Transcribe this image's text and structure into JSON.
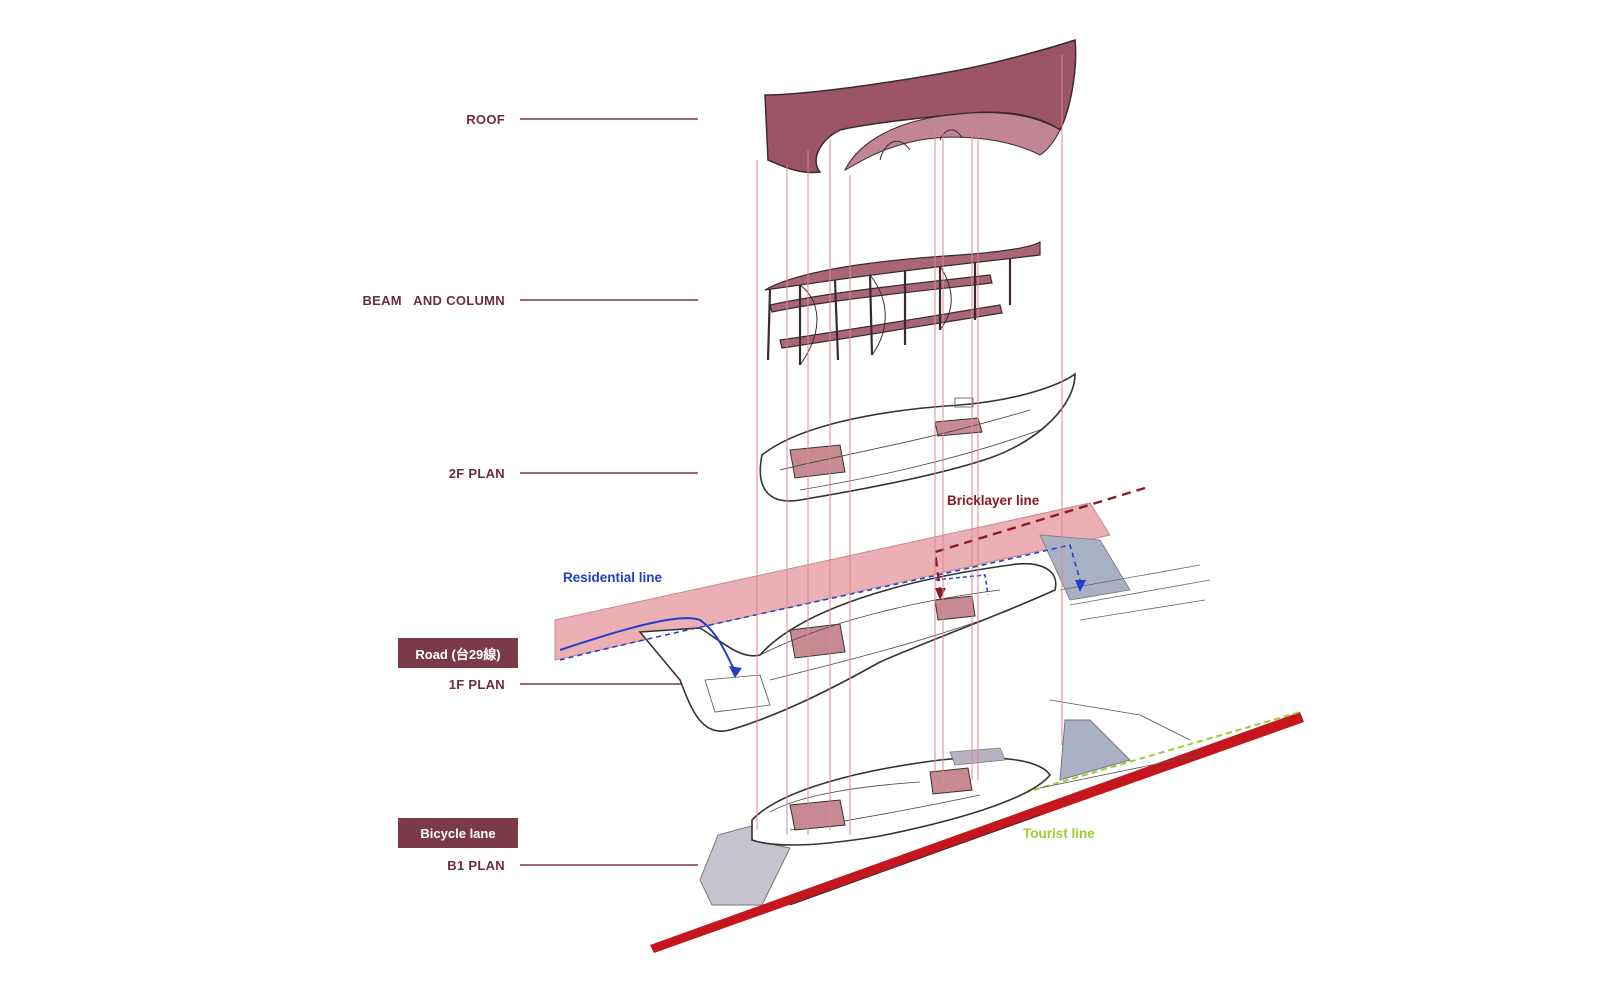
{
  "layers": [
    {
      "id": "roof",
      "label": "ROOF"
    },
    {
      "id": "beam",
      "label": "BEAM   AND COLUMN"
    },
    {
      "id": "f2",
      "label": "2F PLAN"
    },
    {
      "id": "f1",
      "label": "1F PLAN"
    },
    {
      "id": "b1",
      "label": "B1 PLAN"
    }
  ],
  "tags": {
    "road": "Road (台29線)",
    "bicycle": "Bicycle lane"
  },
  "routes": {
    "residential": "Residential line",
    "bricklayer": "Bricklayer line",
    "tourist": "Tourist line"
  },
  "colors": {
    "label_text": "#6b2e3a",
    "tag_bg": "#7a3a47",
    "roof_fill": "#9b5566",
    "road_fill": "#eab0b4",
    "residential": "#1f3fc9",
    "bricklayer": "#8a1a22",
    "tourist": "#9acd32",
    "bicycle_lane": "#c4161c",
    "leader_line": "#7a3a47",
    "projection": "#d98a93"
  }
}
